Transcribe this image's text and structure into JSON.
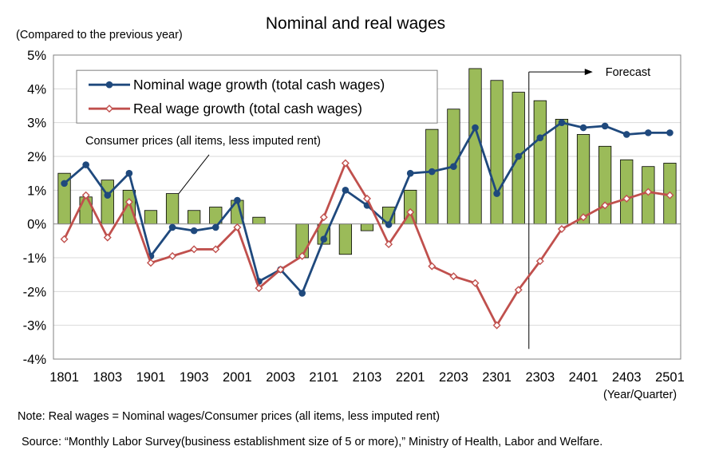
{
  "chart_data": {
    "type": "bar+line",
    "title": "Nominal and real wages",
    "ylabel": "(Compared to the previous year)",
    "xlabel": "(Year/Quarter)",
    "ylim": [
      -4,
      5
    ],
    "yticks": [
      "5%",
      "4%",
      "3%",
      "2%",
      "1%",
      "0%",
      "-1%",
      "-2%",
      "-3%",
      "-4%"
    ],
    "ytick_values": [
      5,
      4,
      3,
      2,
      1,
      0,
      -1,
      -2,
      -3,
      -4
    ],
    "categories": [
      "1801",
      "1802",
      "1803",
      "1804",
      "1901",
      "1902",
      "1903",
      "1904",
      "2001",
      "2002",
      "2003",
      "2004",
      "2101",
      "2102",
      "2103",
      "2104",
      "2201",
      "2202",
      "2203",
      "2204",
      "2301",
      "2302",
      "2303",
      "2304",
      "2401",
      "2402",
      "2403",
      "2404",
      "2501"
    ],
    "xtick_labels": [
      "1801",
      "1803",
      "1901",
      "1903",
      "2001",
      "2003",
      "2101",
      "2103",
      "2201",
      "2203",
      "2301",
      "2303",
      "2401",
      "2403",
      "2501"
    ],
    "grid": true,
    "legend_position": "top-left",
    "series": [
      {
        "name": "Consumer prices (all items, less imputed rent)",
        "kind": "bar",
        "color": "#9bbb59",
        "values": [
          1.5,
          0.8,
          1.3,
          1.0,
          0.4,
          0.9,
          0.4,
          0.5,
          0.7,
          0.2,
          0.0,
          -1.0,
          -0.6,
          -0.9,
          -0.2,
          0.5,
          1.0,
          2.8,
          3.4,
          4.6,
          4.25,
          3.9,
          3.65,
          3.1,
          2.65,
          2.3,
          1.9,
          1.7,
          1.8
        ]
      },
      {
        "name": "Nominal wage growth (total cash wages)",
        "kind": "line",
        "color": "#1f497d",
        "marker": "filled-circle",
        "values": [
          1.2,
          1.75,
          0.85,
          1.5,
          -0.95,
          -0.1,
          -0.2,
          -0.1,
          0.7,
          -1.7,
          -1.35,
          -2.05,
          -0.45,
          1.0,
          0.55,
          -0.02,
          1.5,
          1.55,
          1.7,
          2.85,
          0.9,
          2.0,
          2.55,
          3.0,
          2.85,
          2.9,
          2.65,
          2.7,
          2.7
        ]
      },
      {
        "name": "Real wage growth (total cash wages)",
        "kind": "line",
        "color": "#c0504d",
        "marker": "open-diamond",
        "values": [
          -0.45,
          0.85,
          -0.4,
          0.65,
          -1.15,
          -0.95,
          -0.75,
          -0.75,
          -0.1,
          -1.9,
          -1.35,
          -0.95,
          0.2,
          1.8,
          0.75,
          -0.6,
          0.35,
          -1.25,
          -1.55,
          -1.75,
          -3.0,
          -1.95,
          -1.1,
          -0.15,
          0.2,
          0.55,
          0.75,
          0.95,
          0.85
        ]
      }
    ],
    "annotations": {
      "cpi_label": "Consumer prices (all items, less imputed rent)",
      "forecast_label": "Forecast",
      "forecast_start": "2303"
    },
    "legend": {
      "nominal": "Nominal wage growth (total cash wages)",
      "real": "Real wage growth (total cash wages)"
    }
  },
  "note": "Note: Real wages = Nominal wages/Consumer prices (all items, less imputed rent)",
  "source": "Source: “Monthly Labor Survey(business establishment size of 5 or more),” Ministry of Health, Labor and Welfare."
}
